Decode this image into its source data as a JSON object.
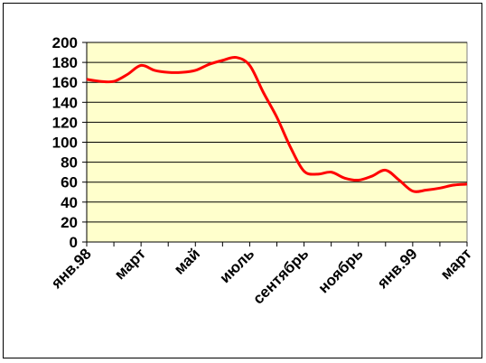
{
  "chart_data": {
    "type": "line",
    "categories": [
      "янв.98",
      null,
      null,
      null,
      "март",
      null,
      null,
      null,
      "май",
      null,
      null,
      null,
      "июль",
      null,
      null,
      null,
      "сентябрь",
      null,
      null,
      null,
      "ноябрь",
      null,
      null,
      null,
      "янв.99",
      null,
      null,
      null,
      "март"
    ],
    "series": [
      {
        "color": "#ff0000",
        "values": [
          163,
          161,
          161,
          168,
          177,
          172,
          170,
          170,
          172,
          178,
          182,
          185,
          177,
          150,
          125,
          95,
          71,
          68,
          70,
          64,
          62,
          66,
          72,
          62,
          51,
          52,
          54,
          57,
          58
        ]
      }
    ],
    "ylim": [
      0,
      200
    ],
    "yticks": [
      0,
      20,
      40,
      60,
      80,
      100,
      120,
      140,
      160,
      180,
      200
    ],
    "grid": true,
    "plot_background": "#ffffcc"
  }
}
